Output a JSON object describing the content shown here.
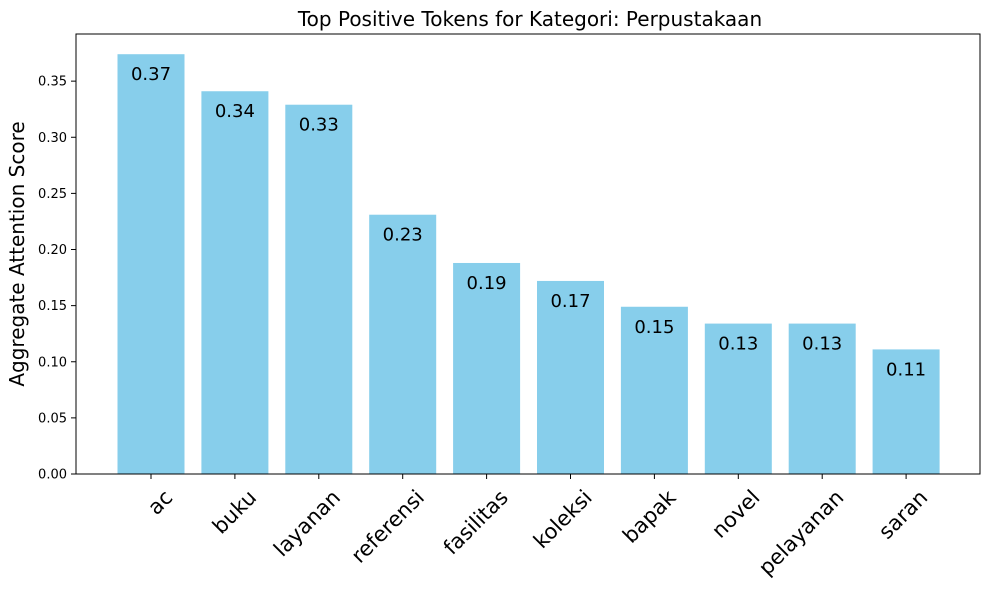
{
  "chart_data": {
    "type": "bar",
    "title": "Top Positive Tokens for Kategori: Perpustakaan",
    "xlabel": "",
    "ylabel": "Aggregate Attention Score",
    "categories": [
      "ac",
      "buku",
      "layanan",
      "referensi",
      "fasilitas",
      "koleksi",
      "bapak",
      "novel",
      "pelayanan",
      "saran"
    ],
    "values": [
      0.374,
      0.341,
      0.329,
      0.231,
      0.188,
      0.172,
      0.149,
      0.134,
      0.134,
      0.111
    ],
    "data_labels": [
      "0.37",
      "0.34",
      "0.33",
      "0.23",
      "0.19",
      "0.17",
      "0.15",
      "0.13",
      "0.13",
      "0.11"
    ],
    "ylim": [
      0,
      0.392
    ],
    "yticks": [
      0.0,
      0.05,
      0.1,
      0.15,
      0.2,
      0.25,
      0.3,
      0.35
    ],
    "ytick_labels": [
      "0.00",
      "0.05",
      "0.10",
      "0.15",
      "0.20",
      "0.25",
      "0.30",
      "0.35"
    ],
    "bar_color": "#87ceeb",
    "grid": false,
    "legend": "none"
  }
}
